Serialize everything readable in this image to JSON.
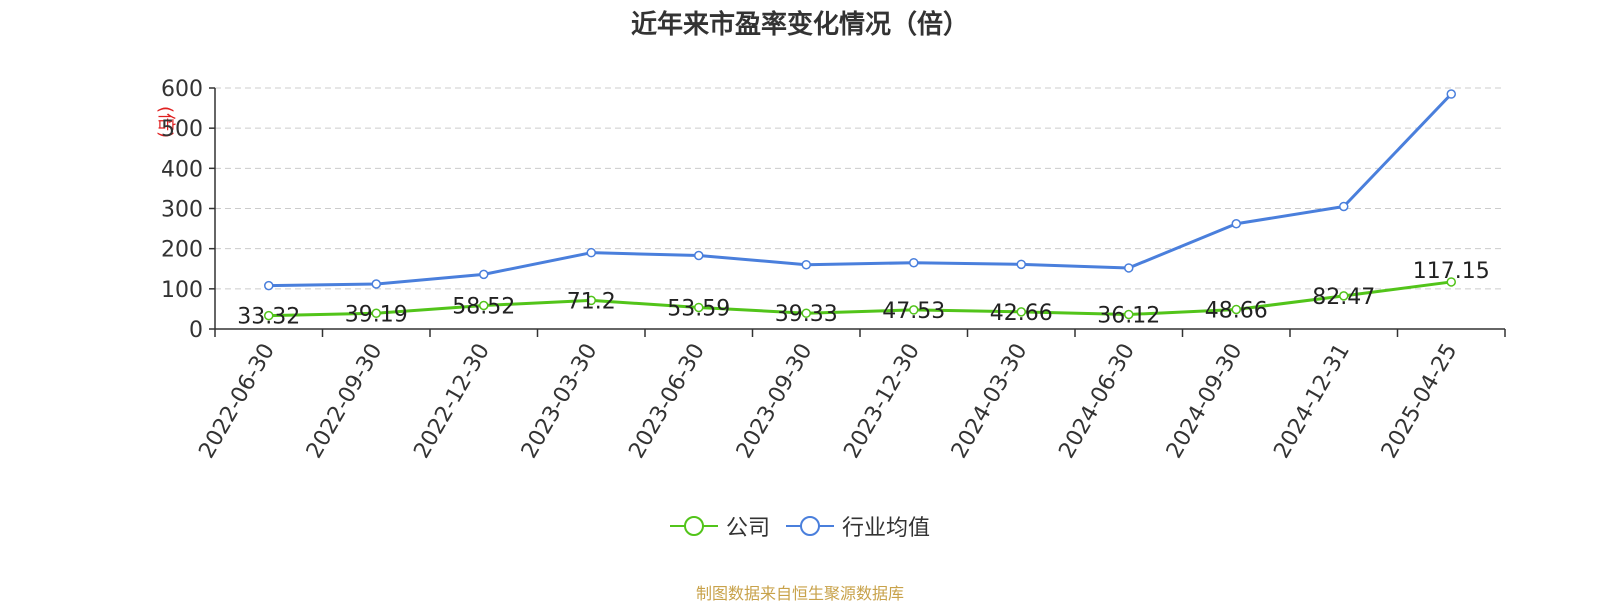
{
  "chart_data": {
    "type": "line",
    "title": "近年来市盈率变化情况（倍）",
    "ylabel": "(倍)",
    "xlabel": "",
    "ylim": [
      0,
      600
    ],
    "yticks": [
      0,
      100,
      200,
      300,
      400,
      500,
      600
    ],
    "grid": true,
    "legend_position": "bottom",
    "categories": [
      "2022-06-30",
      "2022-09-30",
      "2022-12-30",
      "2023-03-30",
      "2023-06-30",
      "2023-09-30",
      "2023-12-30",
      "2024-03-30",
      "2024-06-30",
      "2024-09-30",
      "2024-12-31",
      "2025-04-25"
    ],
    "series": [
      {
        "name": "公司",
        "color": "#52c41a",
        "values": [
          33.32,
          39.19,
          58.52,
          71.2,
          53.59,
          39.33,
          47.53,
          42.66,
          36.12,
          48.66,
          82.47,
          117.15
        ],
        "data_labels": [
          "33.32",
          "39.19",
          "58.52",
          "71.2",
          "53.59",
          "39.33",
          "47.53",
          "42.66",
          "36.12",
          "48.66",
          "82.47",
          "117.15"
        ]
      },
      {
        "name": "行业均值",
        "color": "#4a7fdc",
        "values": [
          108,
          112,
          136,
          190,
          183,
          160,
          165,
          161,
          152,
          262,
          305,
          585
        ]
      }
    ],
    "source_note": "制图数据来自恒生聚源数据库"
  }
}
